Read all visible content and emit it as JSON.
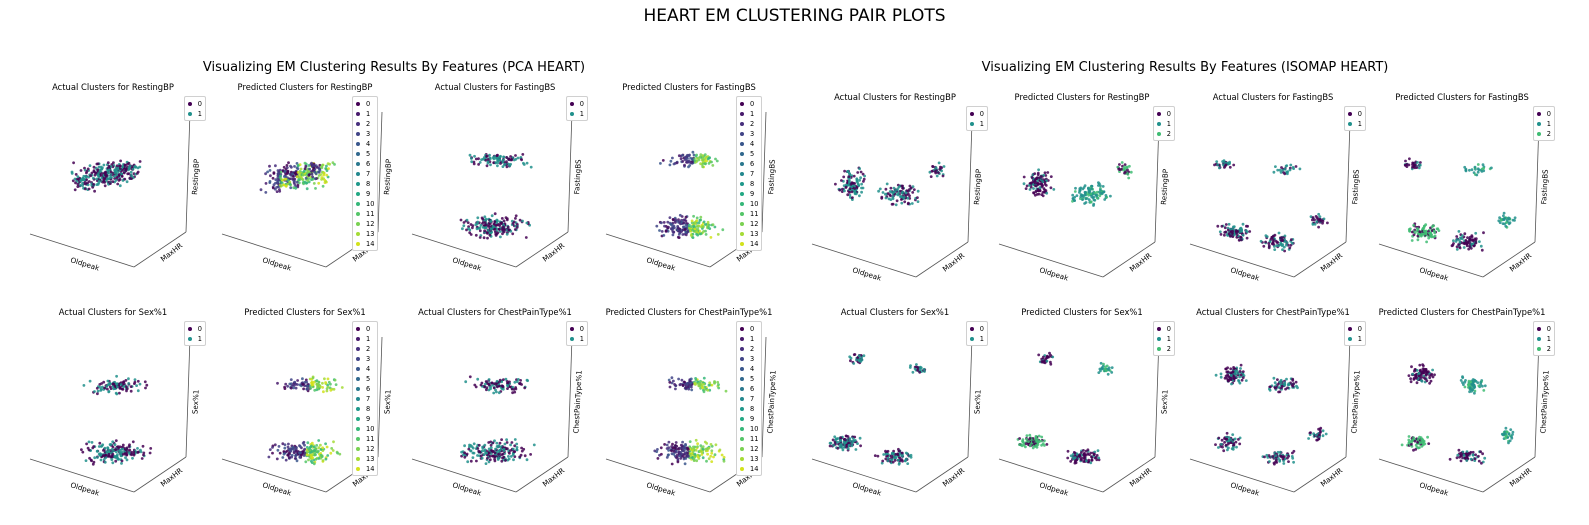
{
  "title": "HEART EM CLUSTERING PAIR PLOTS",
  "groups": [
    {
      "title": "Visualizing EM Clustering Results By Features (PCA HEART)"
    },
    {
      "title": "Visualizing EM Clustering Results By Features (ISOMAP HEART)"
    }
  ],
  "palette": {
    "2": [
      "#440154",
      "#21918c"
    ],
    "3": [
      "#440154",
      "#21918c",
      "#3fbc73"
    ],
    "15": [
      "#440154",
      "#481a6c",
      "#472f7d",
      "#414487",
      "#39568c",
      "#31688e",
      "#2a788e",
      "#23888e",
      "#1f988b",
      "#22a884",
      "#35b779",
      "#54c568",
      "#7ad151",
      "#a5db36",
      "#d2e21b"
    ]
  },
  "chart_data": [
    {
      "type": "scatter",
      "projection": "3d",
      "group": "PCA HEART",
      "title": "Actual Clusters for RestingBP",
      "xlabel": "Oldpeak",
      "ylabel": "MaxHR",
      "zlabel": "RestingBP",
      "legend": [
        "0",
        "1"
      ],
      "legend_position": "top-right",
      "grid": false
    },
    {
      "type": "scatter",
      "projection": "3d",
      "group": "PCA HEART",
      "title": "Predicted Clusters for RestingBP",
      "xlabel": "Oldpeak",
      "ylabel": "MaxHR",
      "zlabel": "RestingBP",
      "legend": [
        "0",
        "1",
        "2",
        "3",
        "4",
        "5",
        "6",
        "7",
        "8",
        "9",
        "10",
        "11",
        "12",
        "13",
        "14"
      ],
      "legend_position": "right",
      "grid": false
    },
    {
      "type": "scatter",
      "projection": "3d",
      "group": "PCA HEART",
      "title": "Actual Clusters for FastingBS",
      "xlabel": "Oldpeak",
      "ylabel": "MaxHR",
      "zlabel": "FastingBS",
      "legend": [
        "0",
        "1"
      ],
      "legend_position": "top-right",
      "grid": false
    },
    {
      "type": "scatter",
      "projection": "3d",
      "group": "PCA HEART",
      "title": "Predicted Clusters for FastingBS",
      "xlabel": "Oldpeak",
      "ylabel": "MaxHR",
      "zlabel": "FastingBS",
      "legend": [
        "0",
        "1",
        "2",
        "3",
        "4",
        "5",
        "6",
        "7",
        "8",
        "9",
        "10",
        "11",
        "12",
        "13",
        "14"
      ],
      "legend_position": "right",
      "grid": false
    },
    {
      "type": "scatter",
      "projection": "3d",
      "group": "ISOMAP HEART",
      "title": "Actual Clusters for RestingBP",
      "xlabel": "Oldpeak",
      "ylabel": "MaxHR",
      "zlabel": "RestingBP",
      "legend": [
        "0",
        "1"
      ],
      "legend_position": "top-right",
      "grid": false
    },
    {
      "type": "scatter",
      "projection": "3d",
      "group": "ISOMAP HEART",
      "title": "Predicted Clusters for RestingBP",
      "xlabel": "Oldpeak",
      "ylabel": "MaxHR",
      "zlabel": "RestingBP",
      "legend": [
        "0",
        "1",
        "2"
      ],
      "legend_position": "top-right",
      "grid": false
    },
    {
      "type": "scatter",
      "projection": "3d",
      "group": "ISOMAP HEART",
      "title": "Actual Clusters for FastingBS",
      "xlabel": "Oldpeak",
      "ylabel": "MaxHR",
      "zlabel": "FastingBS",
      "legend": [
        "0",
        "1"
      ],
      "legend_position": "top-right",
      "grid": false
    },
    {
      "type": "scatter",
      "projection": "3d",
      "group": "ISOMAP HEART",
      "title": "Predicted Clusters for FastingBS",
      "xlabel": "Oldpeak",
      "ylabel": "MaxHR",
      "zlabel": "FastingBS",
      "legend": [
        "0",
        "1",
        "2"
      ],
      "legend_position": "top-right",
      "grid": false
    },
    {
      "type": "scatter",
      "projection": "3d",
      "group": "PCA HEART",
      "title": "Actual Clusters for Sex%1",
      "xlabel": "Oldpeak",
      "ylabel": "MaxHR",
      "zlabel": "Sex%1",
      "legend": [
        "0",
        "1"
      ],
      "legend_position": "top-right",
      "grid": false
    },
    {
      "type": "scatter",
      "projection": "3d",
      "group": "PCA HEART",
      "title": "Predicted Clusters for Sex%1",
      "xlabel": "Oldpeak",
      "ylabel": "MaxHR",
      "zlabel": "Sex%1",
      "legend": [
        "0",
        "1",
        "2",
        "3",
        "4",
        "5",
        "6",
        "7",
        "8",
        "9",
        "10",
        "11",
        "12",
        "13",
        "14"
      ],
      "legend_position": "right",
      "grid": false
    },
    {
      "type": "scatter",
      "projection": "3d",
      "group": "PCA HEART",
      "title": "Actual Clusters for ChestPainType%1",
      "xlabel": "Oldpeak",
      "ylabel": "MaxHR",
      "zlabel": "ChestPainType%1",
      "legend": [
        "0",
        "1"
      ],
      "legend_position": "top-right",
      "grid": false
    },
    {
      "type": "scatter",
      "projection": "3d",
      "group": "PCA HEART",
      "title": "Predicted Clusters for ChestPainType%1",
      "xlabel": "Oldpeak",
      "ylabel": "MaxHR",
      "zlabel": "ChestPainType%1",
      "legend": [
        "0",
        "1",
        "2",
        "3",
        "4",
        "5",
        "6",
        "7",
        "8",
        "9",
        "10",
        "11",
        "12",
        "13",
        "14"
      ],
      "legend_position": "right",
      "grid": false
    },
    {
      "type": "scatter",
      "projection": "3d",
      "group": "ISOMAP HEART",
      "title": "Actual Clusters for Sex%1",
      "xlabel": "Oldpeak",
      "ylabel": "MaxHR",
      "zlabel": "Sex%1",
      "legend": [
        "0",
        "1"
      ],
      "legend_position": "top-right",
      "grid": false
    },
    {
      "type": "scatter",
      "projection": "3d",
      "group": "ISOMAP HEART",
      "title": "Predicted Clusters for Sex%1",
      "xlabel": "Oldpeak",
      "ylabel": "MaxHR",
      "zlabel": "Sex%1",
      "legend": [
        "0",
        "1",
        "2"
      ],
      "legend_position": "top-right",
      "grid": false
    },
    {
      "type": "scatter",
      "projection": "3d",
      "group": "ISOMAP HEART",
      "title": "Actual Clusters for ChestPainType%1",
      "xlabel": "Oldpeak",
      "ylabel": "MaxHR",
      "zlabel": "ChestPainType%1",
      "legend": [
        "0",
        "1"
      ],
      "legend_position": "top-right",
      "grid": false
    },
    {
      "type": "scatter",
      "projection": "3d",
      "group": "ISOMAP HEART",
      "title": "Predicted Clusters for ChestPainType%1",
      "xlabel": "Oldpeak",
      "ylabel": "MaxHR",
      "zlabel": "ChestPainType%1",
      "legend": [
        "0",
        "1",
        "2"
      ],
      "legend_position": "top-right",
      "grid": false
    }
  ]
}
